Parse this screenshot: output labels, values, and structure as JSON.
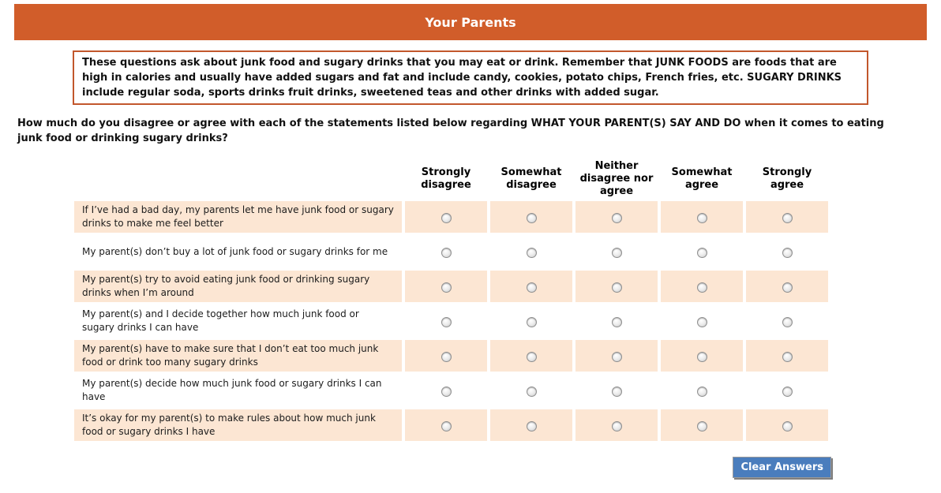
{
  "header": {
    "title": "Your Parents"
  },
  "instructions": {
    "text": "These questions ask about junk food and sugary drinks that you may eat or drink. Remember that JUNK FOODS are foods that are high in calories and usually have added sugars and fat and include candy, cookies, potato chips, French fries, etc. SUGARY DRINKS include regular soda, sports drinks fruit drinks, sweetened teas and other drinks with added sugar."
  },
  "question": {
    "text": "How much do you disagree or agree with each of the statements listed below regarding WHAT YOUR PARENT(S) SAY AND DO when it comes to eating junk food or drinking sugary drinks?"
  },
  "matrix": {
    "columns": [
      "Strongly disagree",
      "Somewhat disagree",
      "Neither disagree nor agree",
      "Somewhat agree",
      "Strongly agree"
    ],
    "rows": [
      {
        "label": "If I’ve had a bad day, my parents let me have junk food or sugary drinks to make me feel better",
        "selected": null
      },
      {
        "label": "My parent(s) don’t buy a lot of junk food or sugary drinks for me",
        "selected": null
      },
      {
        "label": "My parent(s) try to avoid eating junk food or drinking sugary drinks when I’m around",
        "selected": null
      },
      {
        "label": "My parent(s) and I decide together how much junk food or sugary drinks I can have",
        "selected": null
      },
      {
        "label": "My parent(s) have to make sure that I don’t eat too much junk food or drink too many sugary drinks",
        "selected": null
      },
      {
        "label": "My parent(s) decide how much junk food or sugary drinks I can have",
        "selected": null
      },
      {
        "label": "It’s okay for my parent(s) to make rules about how much junk food or sugary drinks I have",
        "selected": null
      }
    ]
  },
  "actions": {
    "clear_button": "Clear Answers"
  },
  "colors": {
    "accent_orange": "#d15d2a",
    "box_border_orange": "#c2572c",
    "row_band_peach": "#fce6d3",
    "button_blue": "#4a7dbd"
  }
}
